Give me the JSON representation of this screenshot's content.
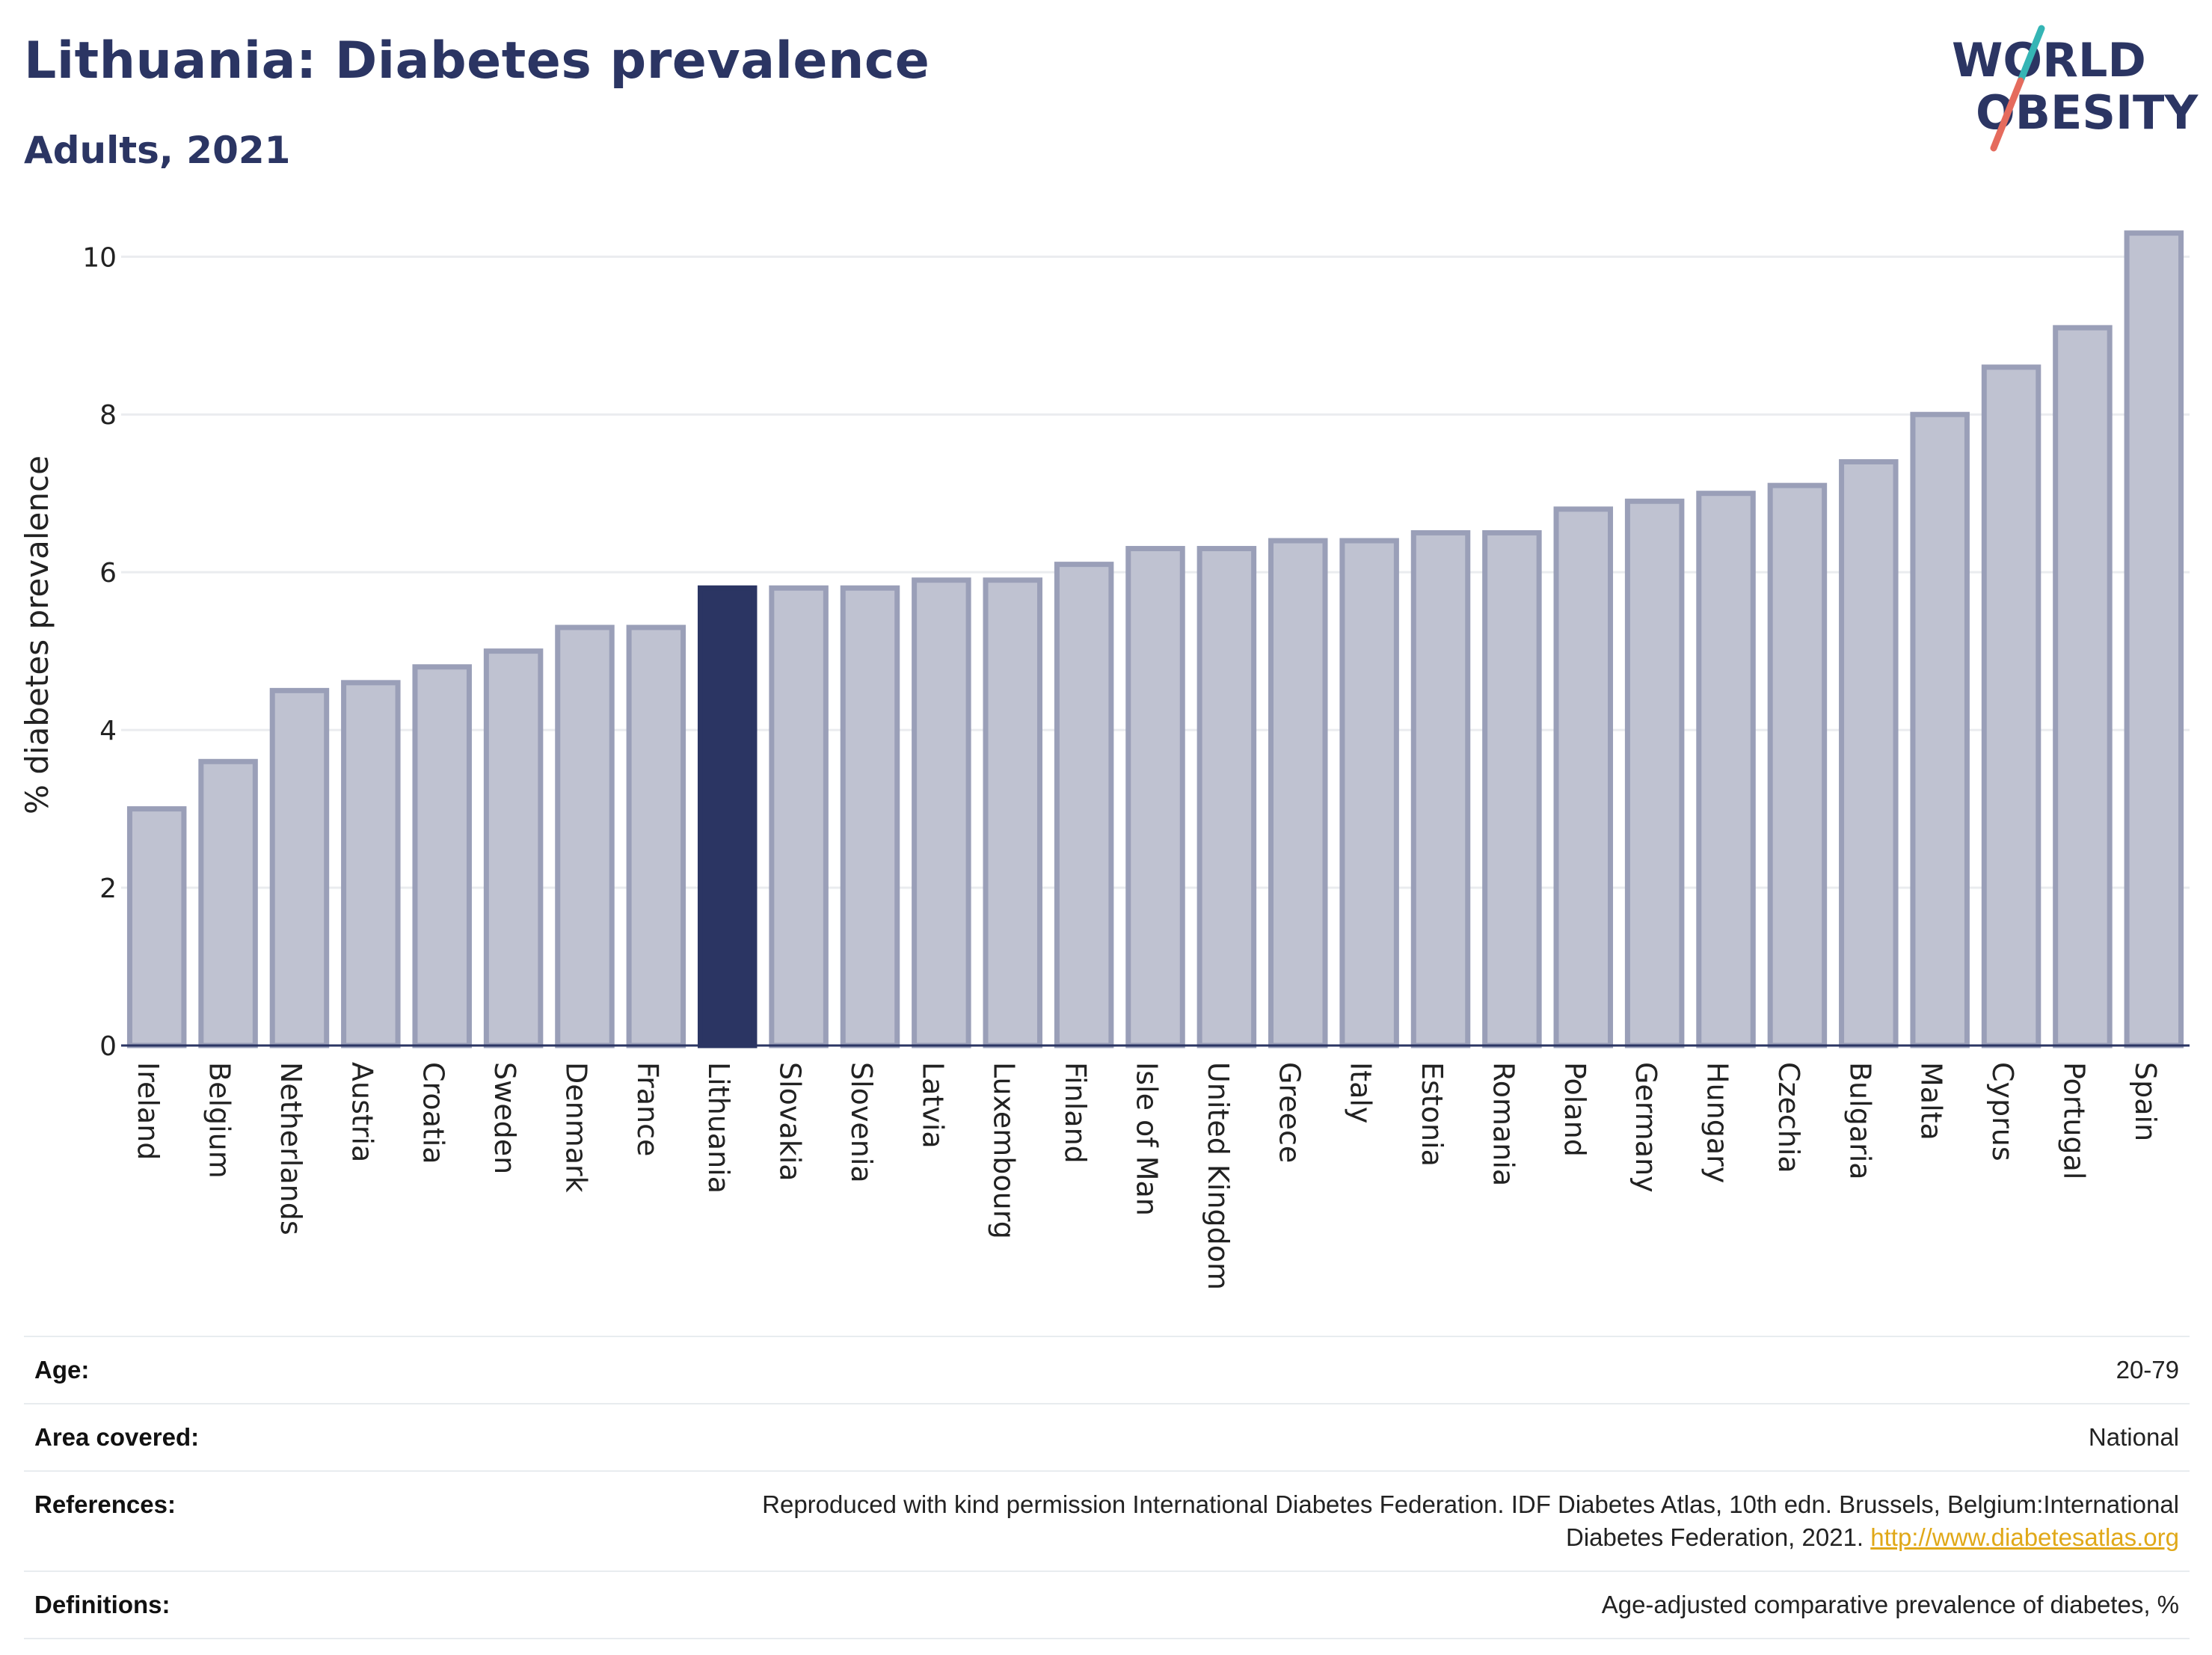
{
  "header": {
    "title": "Lithuania: Diabetes prevalence",
    "subtitle": "Adults, 2021"
  },
  "logo": {
    "line1": "WORLD",
    "line2": "OBESITY",
    "colors": {
      "text": "#2b3563",
      "slash_teal": "#35b5b5",
      "slash_coral": "#e56b5d"
    }
  },
  "chart_data": {
    "type": "bar",
    "ylabel": "% diabetes prevalence",
    "ylim": [
      0,
      10.6
    ],
    "yticks": [
      0,
      2,
      4,
      6,
      8,
      10
    ],
    "grid": true,
    "highlight": "Lithuania",
    "colors": {
      "bar": "#bfc2d1",
      "bar_edge": "#9a9fb8",
      "highlight": "#2b3563",
      "grid": "#eaecef",
      "axis": "#2b3563"
    },
    "categories": [
      "Ireland",
      "Belgium",
      "Netherlands",
      "Austria",
      "Croatia",
      "Sweden",
      "Denmark",
      "France",
      "Lithuania",
      "Slovakia",
      "Slovenia",
      "Latvia",
      "Luxembourg",
      "Finland",
      "Isle of Man",
      "United Kingdom",
      "Greece",
      "Italy",
      "Estonia",
      "Romania",
      "Poland",
      "Germany",
      "Hungary",
      "Czechia",
      "Bulgaria",
      "Malta",
      "Cyprus",
      "Portugal",
      "Spain"
    ],
    "values": [
      3.0,
      3.6,
      4.5,
      4.6,
      4.8,
      5.0,
      5.3,
      5.3,
      5.8,
      5.8,
      5.8,
      5.9,
      5.9,
      6.1,
      6.3,
      6.3,
      6.4,
      6.4,
      6.5,
      6.5,
      6.8,
      6.9,
      7.0,
      7.1,
      7.4,
      8.0,
      8.6,
      9.1,
      10.3
    ]
  },
  "footer": {
    "rows": [
      {
        "label": "Age:",
        "value": "20-79"
      },
      {
        "label": "Area covered:",
        "value": "National"
      },
      {
        "label": "References:",
        "value": "Reproduced with kind permission International Diabetes Federation.  IDF Diabetes Atlas, 10th edn. Brussels, Belgium:International",
        "value2": "Diabetes Federation, 2021. ",
        "link": "http://www.diabetesatlas.org"
      },
      {
        "label": "Definitions:",
        "value": "Age-adjusted comparative prevalence of diabetes, %"
      }
    ]
  }
}
